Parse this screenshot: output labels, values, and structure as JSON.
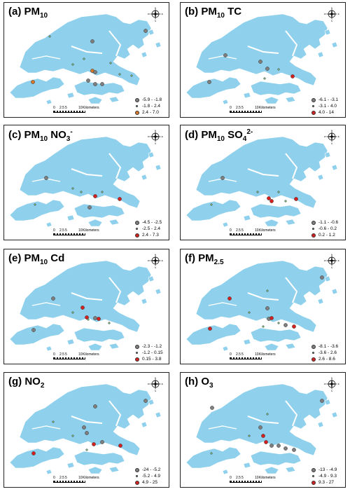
{
  "map_style": {
    "land_color": "#8fd0ec",
    "sea_color": "#ffffff"
  },
  "compass": {
    "north": "N",
    "east": "E",
    "south": "S",
    "west": "W",
    "icon": "compass-rose-icon"
  },
  "scale_bar": {
    "ticks": [
      "0",
      "2.5",
      "5",
      "10"
    ],
    "unit": "Kilometers"
  },
  "panels": [
    {
      "id": "a",
      "prefix": "(a) PM",
      "sub": "10",
      "sup": "",
      "suffix": "",
      "legend": [
        {
          "label": "-5.9 - -1.8",
          "color": "#7f7f7f",
          "size": "large"
        },
        {
          "label": "-1.8 - 2.4",
          "color": "#7fbf7f",
          "size": "small"
        },
        {
          "label": "2.4 - 7.0",
          "color": "#d9772a",
          "size": "large"
        }
      ]
    },
    {
      "id": "b",
      "prefix": "(b) PM",
      "sub": "10",
      "sup": "",
      "suffix": " TC",
      "legend": [
        {
          "label": "-6.1 - -3.1",
          "color": "#7f7f7f",
          "size": "large"
        },
        {
          "label": "-3.1 - 4.0",
          "color": "#7fbf7f",
          "size": "small"
        },
        {
          "label": "4.0 - 14",
          "color": "#d62020",
          "size": "large"
        }
      ]
    },
    {
      "id": "c",
      "prefix": "(c) PM",
      "sub": "10",
      "sup": "-",
      "suffix": " NO",
      "suffix_sub": "3",
      "legend": [
        {
          "label": "-4.5 - -2.5",
          "color": "#7f7f7f",
          "size": "large"
        },
        {
          "label": "-2.5 - 2.4",
          "color": "#7fbf7f",
          "size": "small"
        },
        {
          "label": "2.4 - 7.3",
          "color": "#d62020",
          "size": "large"
        }
      ]
    },
    {
      "id": "d",
      "prefix": "(d) PM",
      "sub": "10",
      "sup": "2-",
      "suffix": " SO",
      "suffix_sub": "4",
      "legend": [
        {
          "label": "-1.1 - -0.6",
          "color": "#7f7f7f",
          "size": "large"
        },
        {
          "label": "-0.6 - 0.2",
          "color": "#7fbf7f",
          "size": "small"
        },
        {
          "label": "0.2 - 1.2",
          "color": "#d62020",
          "size": "large"
        }
      ]
    },
    {
      "id": "e",
      "prefix": "(e) PM",
      "sub": "10",
      "sup": "",
      "suffix": " Cd",
      "legend": [
        {
          "label": "-2.3 - -1.2",
          "color": "#7f7f7f",
          "size": "large"
        },
        {
          "label": "-1.2 - 0.15",
          "color": "#7fbf7f",
          "size": "small"
        },
        {
          "label": "0.15 - 3.8",
          "color": "#d62020",
          "size": "large"
        }
      ]
    },
    {
      "id": "f",
      "prefix": "(f) PM",
      "sub": "2.5",
      "sup": "",
      "suffix": "",
      "legend": [
        {
          "label": "-8.1 - -3.6",
          "color": "#7f7f7f",
          "size": "large"
        },
        {
          "label": "-3.6 - 2.6",
          "color": "#7fbf7f",
          "size": "small"
        },
        {
          "label": "2.6 - 8.6",
          "color": "#d62020",
          "size": "large"
        }
      ]
    },
    {
      "id": "g",
      "prefix": "(g) NO",
      "sub": "2",
      "sup": "",
      "suffix": "",
      "legend": [
        {
          "label": "-24 - -5.2",
          "color": "#7f7f7f",
          "size": "large"
        },
        {
          "label": "-5.2 - 4.9",
          "color": "#7fbf7f",
          "size": "small"
        },
        {
          "label": "4.9 - 25",
          "color": "#d62020",
          "size": "large"
        }
      ]
    },
    {
      "id": "h",
      "prefix": "(h) O",
      "sub": "3",
      "sup": "",
      "suffix": "",
      "legend": [
        {
          "label": "-13 - -4.9",
          "color": "#7f7f7f",
          "size": "large"
        },
        {
          "label": "-4.9 - 9.3",
          "color": "#7fbf7f",
          "size": "small"
        },
        {
          "label": "9.3 - 27",
          "color": "#d62020",
          "size": "large"
        }
      ]
    }
  ]
}
